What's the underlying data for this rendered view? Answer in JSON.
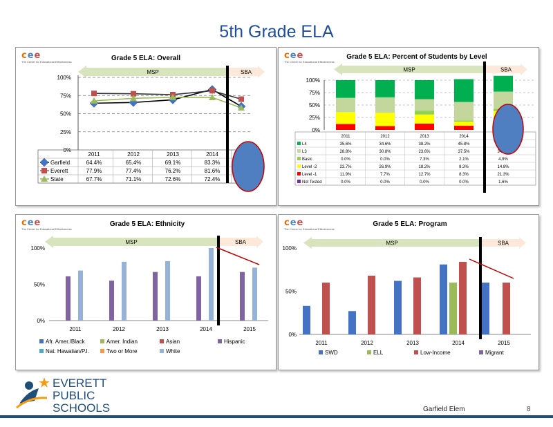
{
  "slide": {
    "title": "5th Grade ELA",
    "school": "Garfield Elem",
    "page_number": "8",
    "logo_text": [
      "EVERETT",
      "PUBLIC",
      "SCHOOLS"
    ],
    "cee_letters": [
      "c",
      "e",
      "e"
    ],
    "cee_tagline": "The Center for Educational Effectiveness"
  },
  "colors": {
    "garfield": "#4472c4",
    "everett": "#c0504d",
    "state": "#9bbb59",
    "hispanic": "#8064a2",
    "white": "#95b3d7",
    "msp_arrow": "#d7e4bd",
    "sba_arrow": "#fde9d9",
    "l4": "#00b050",
    "l3": "#c3d69b",
    "basic": "#92d050",
    "level2": "#ffff00",
    "level1": "#ff0000",
    "not_tested": "#7030a0",
    "oval": "#4f7fc0",
    "trend_line": "#c00000"
  },
  "chart_data": [
    {
      "type": "line",
      "title": "Grade 5 ELA: Overall",
      "categories": [
        "2011",
        "2012",
        "2013",
        "2014"
      ],
      "y_ticks": [
        "0%",
        "25%",
        "50%",
        "75%",
        "100%"
      ],
      "ylim": [
        0,
        100
      ],
      "arrow_labels": [
        "MSP",
        "SBA"
      ],
      "series": [
        {
          "name": "Garfield",
          "values": [
            64.4,
            65.4,
            69.1,
            83.3
          ],
          "labels": [
            "64.4%",
            "65.4%",
            "69.1%",
            "83.3%"
          ]
        },
        {
          "name": "Everett",
          "values": [
            77.9,
            77.4,
            76.2,
            81.6
          ],
          "labels": [
            "77.9%",
            "77.4%",
            "76.2%",
            "81.6%"
          ]
        },
        {
          "name": "State",
          "values": [
            67.7,
            71.1,
            72.6,
            72.4
          ],
          "labels": [
            "67.7%",
            "71.1%",
            "72.6%",
            "72.4%"
          ]
        }
      ],
      "sba_points": {
        "Garfield": 60,
        "Everett": 70,
        "State": 58
      }
    },
    {
      "type": "bar",
      "stacked": true,
      "title": "Grade 5 ELA: Percent of Students by Level",
      "categories": [
        "2011",
        "2012",
        "2013",
        "2014",
        "2015"
      ],
      "y_ticks": [
        "0%",
        "25%",
        "50%",
        "75%",
        "100%"
      ],
      "ylim": [
        0,
        100
      ],
      "arrow_labels": [
        "MSP",
        "SBA"
      ],
      "series": [
        {
          "name": "L4",
          "values": [
            35.6,
            34.6,
            38.2,
            45.8,
            31.7
          ],
          "labels": [
            "35.6%",
            "34.6%",
            "38.2%",
            "45.8%",
            "31.7%"
          ]
        },
        {
          "name": "L3",
          "values": [
            28.8,
            30.8,
            23.6,
            37.5,
            34.4
          ],
          "labels": [
            "28.8%",
            "30.8%",
            "23.6%",
            "37.5%",
            "34.4%"
          ]
        },
        {
          "name": "Basic",
          "values": [
            0.0,
            0.0,
            7.3,
            2.1,
            4.9
          ],
          "labels": [
            "0.0%",
            "0.0%",
            "7.3%",
            "2.1%",
            "4.9%"
          ]
        },
        {
          "name": "Level -2",
          "values": [
            23.7,
            26.9,
            18.2,
            8.3,
            14.8
          ],
          "labels": [
            "23.7%",
            "26.9%",
            "18.2%",
            "8.3%",
            "14.8%"
          ]
        },
        {
          "name": "Level -1",
          "values": [
            11.9,
            7.7,
            12.7,
            8.3,
            21.3
          ],
          "labels": [
            "11.9%",
            "7.7%",
            "12.7%",
            "8.3%",
            "21.3%"
          ]
        },
        {
          "name": "Not Tested",
          "values": [
            0.0,
            0.0,
            0.0,
            0.0,
            1.6
          ],
          "labels": [
            "0.0%",
            "0.0%",
            "0.0%",
            "0.0%",
            "1.6%"
          ]
        }
      ]
    },
    {
      "type": "bar",
      "title": "Grade 5 ELA: Ethnicity",
      "categories": [
        "2011",
        "2012",
        "2013",
        "2014",
        "2015"
      ],
      "y_ticks": [
        "0%",
        "50%",
        "100%"
      ],
      "ylim": [
        0,
        100
      ],
      "arrow_labels": [
        "MSP",
        "SBA"
      ],
      "legend": [
        "Afr. Amer./Black",
        "Amer. Indian",
        "Asian",
        "Hispanic",
        "Nat. Hawaiian/P.I.",
        "Two or More",
        "White"
      ],
      "series": [
        {
          "name": "Hispanic",
          "values": [
            61,
            55,
            67,
            61,
            67
          ]
        },
        {
          "name": "White",
          "values": [
            69,
            81,
            82,
            100,
            73
          ]
        }
      ]
    },
    {
      "type": "bar",
      "title": "Grade 5 ELA: Program",
      "categories": [
        "2011",
        "2012",
        "2013",
        "2014",
        "2015"
      ],
      "y_ticks": [
        "0%",
        "50%",
        "100%"
      ],
      "ylim": [
        0,
        100
      ],
      "arrow_labels": [
        "MSP",
        "SBA"
      ],
      "legend": [
        "SWD",
        "ELL",
        "Low-Income",
        "Migrant"
      ],
      "series": [
        {
          "name": "SWD",
          "values": [
            33,
            27,
            62,
            81,
            60
          ]
        },
        {
          "name": "ELL",
          "values": [
            null,
            null,
            null,
            60,
            null
          ]
        },
        {
          "name": "Low-Income",
          "values": [
            60,
            68,
            66,
            84,
            60
          ]
        },
        {
          "name": "Migrant",
          "values": [
            null,
            null,
            null,
            null,
            null
          ]
        }
      ]
    }
  ]
}
